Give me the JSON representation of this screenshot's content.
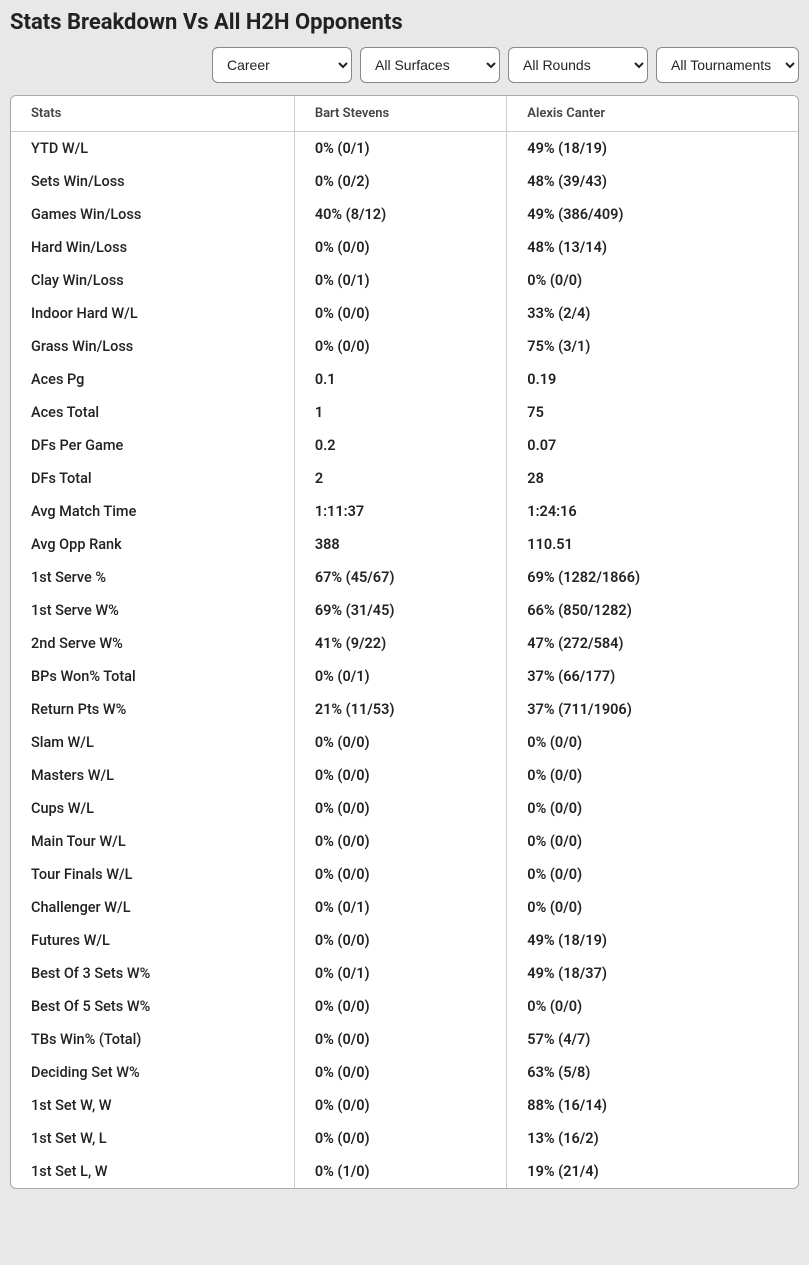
{
  "title": "Stats Breakdown Vs All H2H Opponents",
  "filters": {
    "period": "Career",
    "surface": "All Surfaces",
    "round": "All Rounds",
    "tournament": "All Tournaments"
  },
  "table": {
    "columns": [
      "Stats",
      "Bart Stevens",
      "Alexis Canter"
    ],
    "rows": [
      {
        "stat": "YTD W/L",
        "p1": "0% (0/1)",
        "p2": "49% (18/19)"
      },
      {
        "stat": "Sets Win/Loss",
        "p1": "0% (0/2)",
        "p2": "48% (39/43)"
      },
      {
        "stat": "Games Win/Loss",
        "p1": "40% (8/12)",
        "p2": "49% (386/409)"
      },
      {
        "stat": "Hard Win/Loss",
        "p1": "0% (0/0)",
        "p2": "48% (13/14)"
      },
      {
        "stat": "Clay Win/Loss",
        "p1": "0% (0/1)",
        "p2": "0% (0/0)"
      },
      {
        "stat": "Indoor Hard W/L",
        "p1": "0% (0/0)",
        "p2": "33% (2/4)"
      },
      {
        "stat": "Grass Win/Loss",
        "p1": "0% (0/0)",
        "p2": "75% (3/1)"
      },
      {
        "stat": "Aces Pg",
        "p1": "0.1",
        "p2": "0.19"
      },
      {
        "stat": "Aces Total",
        "p1": "1",
        "p2": "75"
      },
      {
        "stat": "DFs Per Game",
        "p1": "0.2",
        "p2": "0.07"
      },
      {
        "stat": "DFs Total",
        "p1": "2",
        "p2": "28"
      },
      {
        "stat": "Avg Match Time",
        "p1": "1:11:37",
        "p2": "1:24:16"
      },
      {
        "stat": "Avg Opp Rank",
        "p1": "388",
        "p2": "110.51"
      },
      {
        "stat": "1st Serve %",
        "p1": "67% (45/67)",
        "p2": "69% (1282/1866)"
      },
      {
        "stat": "1st Serve W%",
        "p1": "69% (31/45)",
        "p2": "66% (850/1282)"
      },
      {
        "stat": "2nd Serve W%",
        "p1": "41% (9/22)",
        "p2": "47% (272/584)"
      },
      {
        "stat": "BPs Won% Total",
        "p1": "0% (0/1)",
        "p2": "37% (66/177)"
      },
      {
        "stat": "Return Pts W%",
        "p1": "21% (11/53)",
        "p2": "37% (711/1906)"
      },
      {
        "stat": "Slam W/L",
        "p1": "0% (0/0)",
        "p2": "0% (0/0)"
      },
      {
        "stat": "Masters W/L",
        "p1": "0% (0/0)",
        "p2": "0% (0/0)"
      },
      {
        "stat": "Cups W/L",
        "p1": "0% (0/0)",
        "p2": "0% (0/0)"
      },
      {
        "stat": "Main Tour W/L",
        "p1": "0% (0/0)",
        "p2": "0% (0/0)"
      },
      {
        "stat": "Tour Finals W/L",
        "p1": "0% (0/0)",
        "p2": "0% (0/0)"
      },
      {
        "stat": "Challenger W/L",
        "p1": "0% (0/1)",
        "p2": "0% (0/0)"
      },
      {
        "stat": "Futures W/L",
        "p1": "0% (0/0)",
        "p2": "49% (18/19)"
      },
      {
        "stat": "Best Of 3 Sets W%",
        "p1": "0% (0/1)",
        "p2": "49% (18/37)"
      },
      {
        "stat": "Best Of 5 Sets W%",
        "p1": "0% (0/0)",
        "p2": "0% (0/0)"
      },
      {
        "stat": "TBs Win% (Total)",
        "p1": "0% (0/0)",
        "p2": "57% (4/7)"
      },
      {
        "stat": "Deciding Set W%",
        "p1": "0% (0/0)",
        "p2": "63% (5/8)"
      },
      {
        "stat": "1st Set W, W",
        "p1": "0% (0/0)",
        "p2": "88% (16/14)"
      },
      {
        "stat": "1st Set W, L",
        "p1": "0% (0/0)",
        "p2": "13% (16/2)"
      },
      {
        "stat": "1st Set L, W",
        "p1": "0% (1/0)",
        "p2": "19% (21/4)"
      }
    ]
  }
}
